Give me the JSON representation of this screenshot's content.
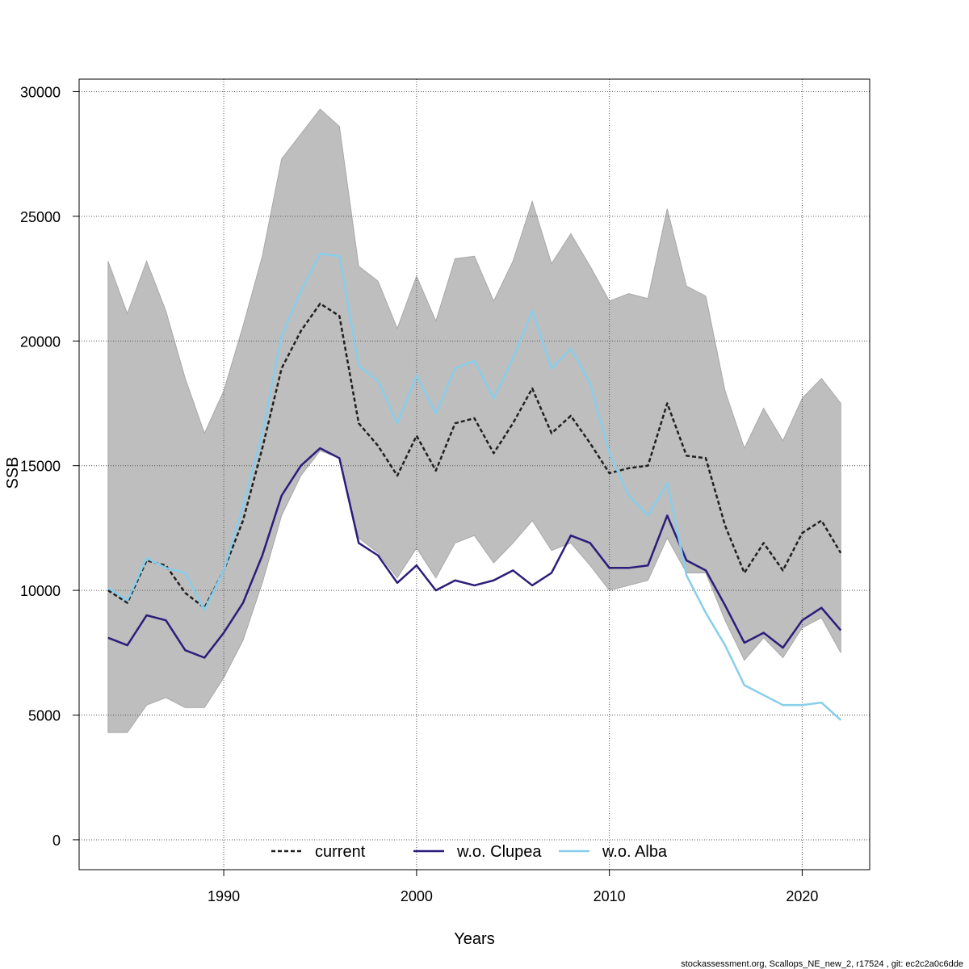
{
  "chart_data": {
    "type": "line",
    "xlabel": "Years",
    "ylabel": "SSB",
    "xlim": [
      1982.5,
      2023.5
    ],
    "ylim": [
      -1200,
      30500
    ],
    "xticks": [
      1990,
      2000,
      2010,
      2020
    ],
    "yticks": [
      0,
      5000,
      10000,
      15000,
      20000,
      25000,
      30000
    ],
    "grid": true,
    "legend_position": "bottom-center",
    "x": [
      1984,
      1985,
      1986,
      1987,
      1988,
      1989,
      1990,
      1991,
      1992,
      1993,
      1994,
      1995,
      1996,
      1997,
      1998,
      1999,
      2000,
      2001,
      2002,
      2003,
      2004,
      2005,
      2006,
      2007,
      2008,
      2009,
      2010,
      2011,
      2012,
      2013,
      2014,
      2015,
      2016,
      2017,
      2018,
      2019,
      2020,
      2021,
      2022
    ],
    "band": {
      "color": "#bebebe",
      "upper": [
        23200,
        21100,
        23200,
        21200,
        18500,
        16300,
        18000,
        20600,
        23400,
        27300,
        28300,
        29300,
        28600,
        23000,
        22400,
        20500,
        22600,
        20800,
        23300,
        23400,
        21600,
        23200,
        25600,
        23100,
        24300,
        23000,
        21600,
        21900,
        21700,
        25300,
        22200,
        21800,
        18000,
        15700,
        17300,
        16000,
        17700,
        18500,
        17500
      ],
      "lower": [
        4300,
        4300,
        5400,
        5700,
        5300,
        5300,
        6500,
        8000,
        10300,
        13000,
        14600,
        15600,
        15300,
        12100,
        11500,
        10500,
        11700,
        10500,
        11900,
        12200,
        11100,
        11900,
        12800,
        11600,
        11900,
        11000,
        10000,
        10200,
        10400,
        12100,
        10700,
        10700,
        8800,
        7200,
        8100,
        7300,
        8500,
        8900,
        7500
      ]
    },
    "series": [
      {
        "name": "current",
        "color": "#202020",
        "dash": "5,3",
        "values": [
          10000,
          9500,
          11200,
          11000,
          9900,
          9300,
          10800,
          12800,
          15700,
          18900,
          20400,
          21500,
          21000,
          16700,
          15800,
          14600,
          16200,
          14800,
          16700,
          16900,
          15500,
          16700,
          18100,
          16300,
          17000,
          15900,
          14700,
          14900,
          15000,
          17500,
          15400,
          15300,
          12600,
          10700,
          11900,
          10800,
          12300,
          12800,
          11500
        ]
      },
      {
        "name": "w.o. Clupea",
        "color": "#2b1d7a",
        "dash": "",
        "values": [
          8100,
          7800,
          9000,
          8800,
          7600,
          7300,
          8300,
          9500,
          11400,
          13800,
          15000,
          15700,
          15300,
          11900,
          11400,
          10300,
          11000,
          10000,
          10400,
          10200,
          10400,
          10800,
          10200,
          10700,
          12200,
          11900,
          10900,
          10900,
          11000,
          13000,
          11200,
          10800,
          9400,
          7900,
          8300,
          7700,
          8800,
          9300,
          8400
        ]
      },
      {
        "name": "w.o. Alba",
        "color": "#87ceeb",
        "dash": "",
        "values": [
          10100,
          9600,
          11300,
          10900,
          10700,
          9200,
          10800,
          13400,
          16300,
          20200,
          22000,
          23500,
          23400,
          19000,
          18400,
          16700,
          18600,
          17100,
          18900,
          19200,
          17700,
          19300,
          21200,
          18900,
          19700,
          18300,
          15500,
          13800,
          13000,
          14300,
          10600,
          9100,
          7800,
          6200,
          5800,
          5400,
          5400,
          5500,
          4800
        ]
      }
    ]
  },
  "footer": "stockassessment.org, Scallops_NE_new_2, r17524 , git: ec2c2a0c6dde"
}
